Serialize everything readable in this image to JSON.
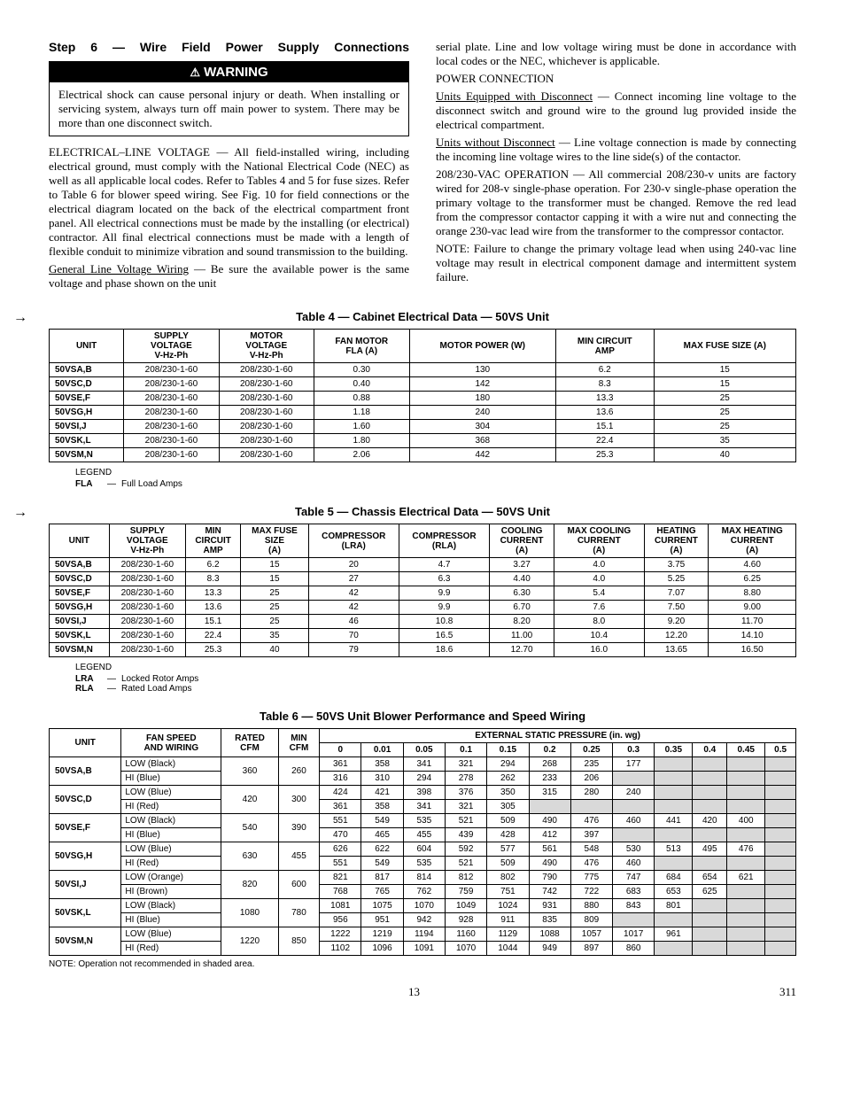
{
  "header": {
    "step_title": "Step 6 — Wire Field Power Supply Connections",
    "warning_label": "WARNING",
    "warning_text": "Electrical shock can cause personal injury or death. When installing or servicing system, always turn off main power to system. There may be more than one disconnect switch."
  },
  "left": {
    "p1_lead": "ELECTRICAL–LINE VOLTAGE",
    "p1": " — All field-installed wiring, including electrical ground, must comply with the National Electrical Code (NEC) as well as all applicable local codes. Refer to Tables 4 and 5 for fuse sizes. Refer to Table 6 for blower speed wiring. See Fig. 10 for field connections or the electrical diagram located on the back of the electrical compartment front panel. All electrical connections must be made by the installing (or electrical) contractor. All final electrical connections must be made with a length of flexible conduit to minimize vibration and sound transmission to the building.",
    "p2_u": "General Line Voltage Wiring",
    "p2": " — Be sure the available power is the same voltage and phase shown on the unit"
  },
  "right": {
    "p1": "serial plate. Line and low voltage wiring must be done in accordance with local codes or the NEC, whichever is applicable.",
    "p2": "POWER CONNECTION",
    "p3_u": "Units Equipped with Disconnect",
    "p3": " — Connect incoming line voltage to the disconnect switch and ground wire to the ground lug provided inside the electrical compartment.",
    "p4_u": "Units without Disconnect",
    "p4": " — Line voltage connection is made by connecting the incoming line voltage wires to the line side(s) of the contactor.",
    "p5_lead": "208/230-VAC OPERATION",
    "p5": " — All commercial 208/230-v units are factory wired for 208-v single-phase operation. For 230-v single-phase operation the primary voltage to the transformer must be changed. Remove the red lead from the compressor contactor capping it with a wire nut and connecting the orange 230-vac lead wire from the transformer to the compressor contactor.",
    "p6": "NOTE: Failure to change the primary voltage lead when using 240-vac line voltage may result in electrical component damage and intermittent system failure."
  },
  "table4": {
    "title": "Table 4 — Cabinet Electrical Data — 50VS Unit",
    "headers": [
      "UNIT",
      "SUPPLY\nVOLTAGE\nV-Hz-Ph",
      "MOTOR\nVOLTAGE\nV-Hz-Ph",
      "FAN MOTOR\nFLA (A)",
      "MOTOR POWER (W)",
      "MIN CIRCUIT\nAMP",
      "MAX FUSE SIZE (A)"
    ],
    "rows": [
      [
        "50VSA,B",
        "208/230-1-60",
        "208/230-1-60",
        "0.30",
        "130",
        "6.2",
        "15"
      ],
      [
        "50VSC,D",
        "208/230-1-60",
        "208/230-1-60",
        "0.40",
        "142",
        "8.3",
        "15"
      ],
      [
        "50VSE,F",
        "208/230-1-60",
        "208/230-1-60",
        "0.88",
        "180",
        "13.3",
        "25"
      ],
      [
        "50VSG,H",
        "208/230-1-60",
        "208/230-1-60",
        "1.18",
        "240",
        "13.6",
        "25"
      ],
      [
        "50VSI,J",
        "208/230-1-60",
        "208/230-1-60",
        "1.60",
        "304",
        "15.1",
        "25"
      ],
      [
        "50VSK,L",
        "208/230-1-60",
        "208/230-1-60",
        "1.80",
        "368",
        "22.4",
        "35"
      ],
      [
        "50VSM,N",
        "208/230-1-60",
        "208/230-1-60",
        "2.06",
        "442",
        "25.3",
        "40"
      ]
    ],
    "legend_title": "LEGEND",
    "legend": [
      [
        "FLA",
        "—",
        "Full Load Amps"
      ]
    ]
  },
  "table5": {
    "title": "Table 5 — Chassis Electrical Data — 50VS Unit",
    "headers": [
      "UNIT",
      "SUPPLY\nVOLTAGE\nV-Hz-Ph",
      "MIN\nCIRCUIT\nAMP",
      "MAX FUSE\nSIZE\n(A)",
      "COMPRESSOR\n(LRA)",
      "COMPRESSOR\n(RLA)",
      "COOLING\nCURRENT\n(A)",
      "MAX COOLING\nCURRENT\n(A)",
      "HEATING\nCURRENT\n(A)",
      "MAX HEATING\nCURRENT\n(A)"
    ],
    "rows": [
      [
        "50VSA,B",
        "208/230-1-60",
        "6.2",
        "15",
        "20",
        "4.7",
        "3.27",
        "4.0",
        "3.75",
        "4.60"
      ],
      [
        "50VSC,D",
        "208/230-1-60",
        "8.3",
        "15",
        "27",
        "6.3",
        "4.40",
        "4.0",
        "5.25",
        "6.25"
      ],
      [
        "50VSE,F",
        "208/230-1-60",
        "13.3",
        "25",
        "42",
        "9.9",
        "6.30",
        "5.4",
        "7.07",
        "8.80"
      ],
      [
        "50VSG,H",
        "208/230-1-60",
        "13.6",
        "25",
        "42",
        "9.9",
        "6.70",
        "7.6",
        "7.50",
        "9.00"
      ],
      [
        "50VSI,J",
        "208/230-1-60",
        "15.1",
        "25",
        "46",
        "10.8",
        "8.20",
        "8.0",
        "9.20",
        "11.70"
      ],
      [
        "50VSK,L",
        "208/230-1-60",
        "22.4",
        "35",
        "70",
        "16.5",
        "11.00",
        "10.4",
        "12.20",
        "14.10"
      ],
      [
        "50VSM,N",
        "208/230-1-60",
        "25.3",
        "40",
        "79",
        "18.6",
        "12.70",
        "16.0",
        "13.65",
        "16.50"
      ]
    ],
    "legend_title": "LEGEND",
    "legend": [
      [
        "LRA",
        "—",
        "Locked Rotor Amps"
      ],
      [
        "RLA",
        "—",
        "Rated Load Amps"
      ]
    ]
  },
  "table6": {
    "title": "Table 6 — 50VS Unit Blower Performance and Speed Wiring",
    "headers_top": [
      "UNIT",
      "FAN SPEED\nAND WIRING",
      "RATED\nCFM",
      "MIN\nCFM",
      "EXTERNAL STATIC PRESSURE (in. wg)"
    ],
    "pressure_cols": [
      "0",
      "0.01",
      "0.05",
      "0.1",
      "0.15",
      "0.2",
      "0.25",
      "0.3",
      "0.35",
      "0.4",
      "0.45",
      "0.5"
    ],
    "rows": [
      {
        "unit": "50VSA,B",
        "rated": "360",
        "min": "260",
        "sub": [
          {
            "label": "LOW (Black)",
            "vals": [
              "361",
              "358",
              "341",
              "321",
              "294",
              "268",
              "235",
              "177",
              "",
              "",
              "",
              ""
            ],
            "shaded_from": 8
          },
          {
            "label": "HI (Blue)",
            "vals": [
              "316",
              "310",
              "294",
              "278",
              "262",
              "233",
              "206",
              "",
              "",
              "",
              "",
              ""
            ],
            "shaded_from": 7
          }
        ]
      },
      {
        "unit": "50VSC,D",
        "rated": "420",
        "min": "300",
        "sub": [
          {
            "label": "LOW (Blue)",
            "vals": [
              "424",
              "421",
              "398",
              "376",
              "350",
              "315",
              "280",
              "240",
              "",
              "",
              "",
              ""
            ],
            "shaded_from": 8
          },
          {
            "label": "HI (Red)",
            "vals": [
              "361",
              "358",
              "341",
              "321",
              "305",
              "",
              "",
              "",
              "",
              "",
              "",
              ""
            ],
            "shaded_from": 5
          }
        ]
      },
      {
        "unit": "50VSE,F",
        "rated": "540",
        "min": "390",
        "sub": [
          {
            "label": "LOW (Black)",
            "vals": [
              "551",
              "549",
              "535",
              "521",
              "509",
              "490",
              "476",
              "460",
              "441",
              "420",
              "400",
              ""
            ],
            "shaded_from": 11
          },
          {
            "label": "HI (Blue)",
            "vals": [
              "470",
              "465",
              "455",
              "439",
              "428",
              "412",
              "397",
              "",
              "",
              "",
              "",
              ""
            ],
            "shaded_from": 7
          }
        ]
      },
      {
        "unit": "50VSG,H",
        "rated": "630",
        "min": "455",
        "sub": [
          {
            "label": "LOW (Blue)",
            "vals": [
              "626",
              "622",
              "604",
              "592",
              "577",
              "561",
              "548",
              "530",
              "513",
              "495",
              "476",
              ""
            ],
            "shaded_from": 11
          },
          {
            "label": "HI (Red)",
            "vals": [
              "551",
              "549",
              "535",
              "521",
              "509",
              "490",
              "476",
              "460",
              "",
              "",
              "",
              ""
            ],
            "shaded_from": 8
          }
        ]
      },
      {
        "unit": "50VSI,J",
        "rated": "820",
        "min": "600",
        "sub": [
          {
            "label": "LOW (Orange)",
            "vals": [
              "821",
              "817",
              "814",
              "812",
              "802",
              "790",
              "775",
              "747",
              "684",
              "654",
              "621",
              ""
            ],
            "shaded_from": 11
          },
          {
            "label": "HI (Brown)",
            "vals": [
              "768",
              "765",
              "762",
              "759",
              "751",
              "742",
              "722",
              "683",
              "653",
              "625",
              "",
              ""
            ],
            "shaded_from": 10
          }
        ]
      },
      {
        "unit": "50VSK,L",
        "rated": "1080",
        "min": "780",
        "sub": [
          {
            "label": "LOW (Black)",
            "vals": [
              "1081",
              "1075",
              "1070",
              "1049",
              "1024",
              "931",
              "880",
              "843",
              "801",
              "",
              "",
              ""
            ],
            "shaded_from": 9
          },
          {
            "label": "HI (Blue)",
            "vals": [
              "956",
              "951",
              "942",
              "928",
              "911",
              "835",
              "809",
              "",
              "",
              "",
              "",
              ""
            ],
            "shaded_from": 7
          }
        ]
      },
      {
        "unit": "50VSM,N",
        "rated": "1220",
        "min": "850",
        "sub": [
          {
            "label": "LOW (Blue)",
            "vals": [
              "1222",
              "1219",
              "1194",
              "1160",
              "1129",
              "1088",
              "1057",
              "1017",
              "961",
              "",
              "",
              ""
            ],
            "shaded_from": 9
          },
          {
            "label": "HI (Red)",
            "vals": [
              "1102",
              "1096",
              "1091",
              "1070",
              "1044",
              "949",
              "897",
              "860",
              "",
              "",
              "",
              ""
            ],
            "shaded_from": 8
          }
        ]
      }
    ],
    "note": "NOTE: Operation not recommended in shaded area."
  },
  "footer": {
    "page_center": "13",
    "page_right": "311"
  }
}
